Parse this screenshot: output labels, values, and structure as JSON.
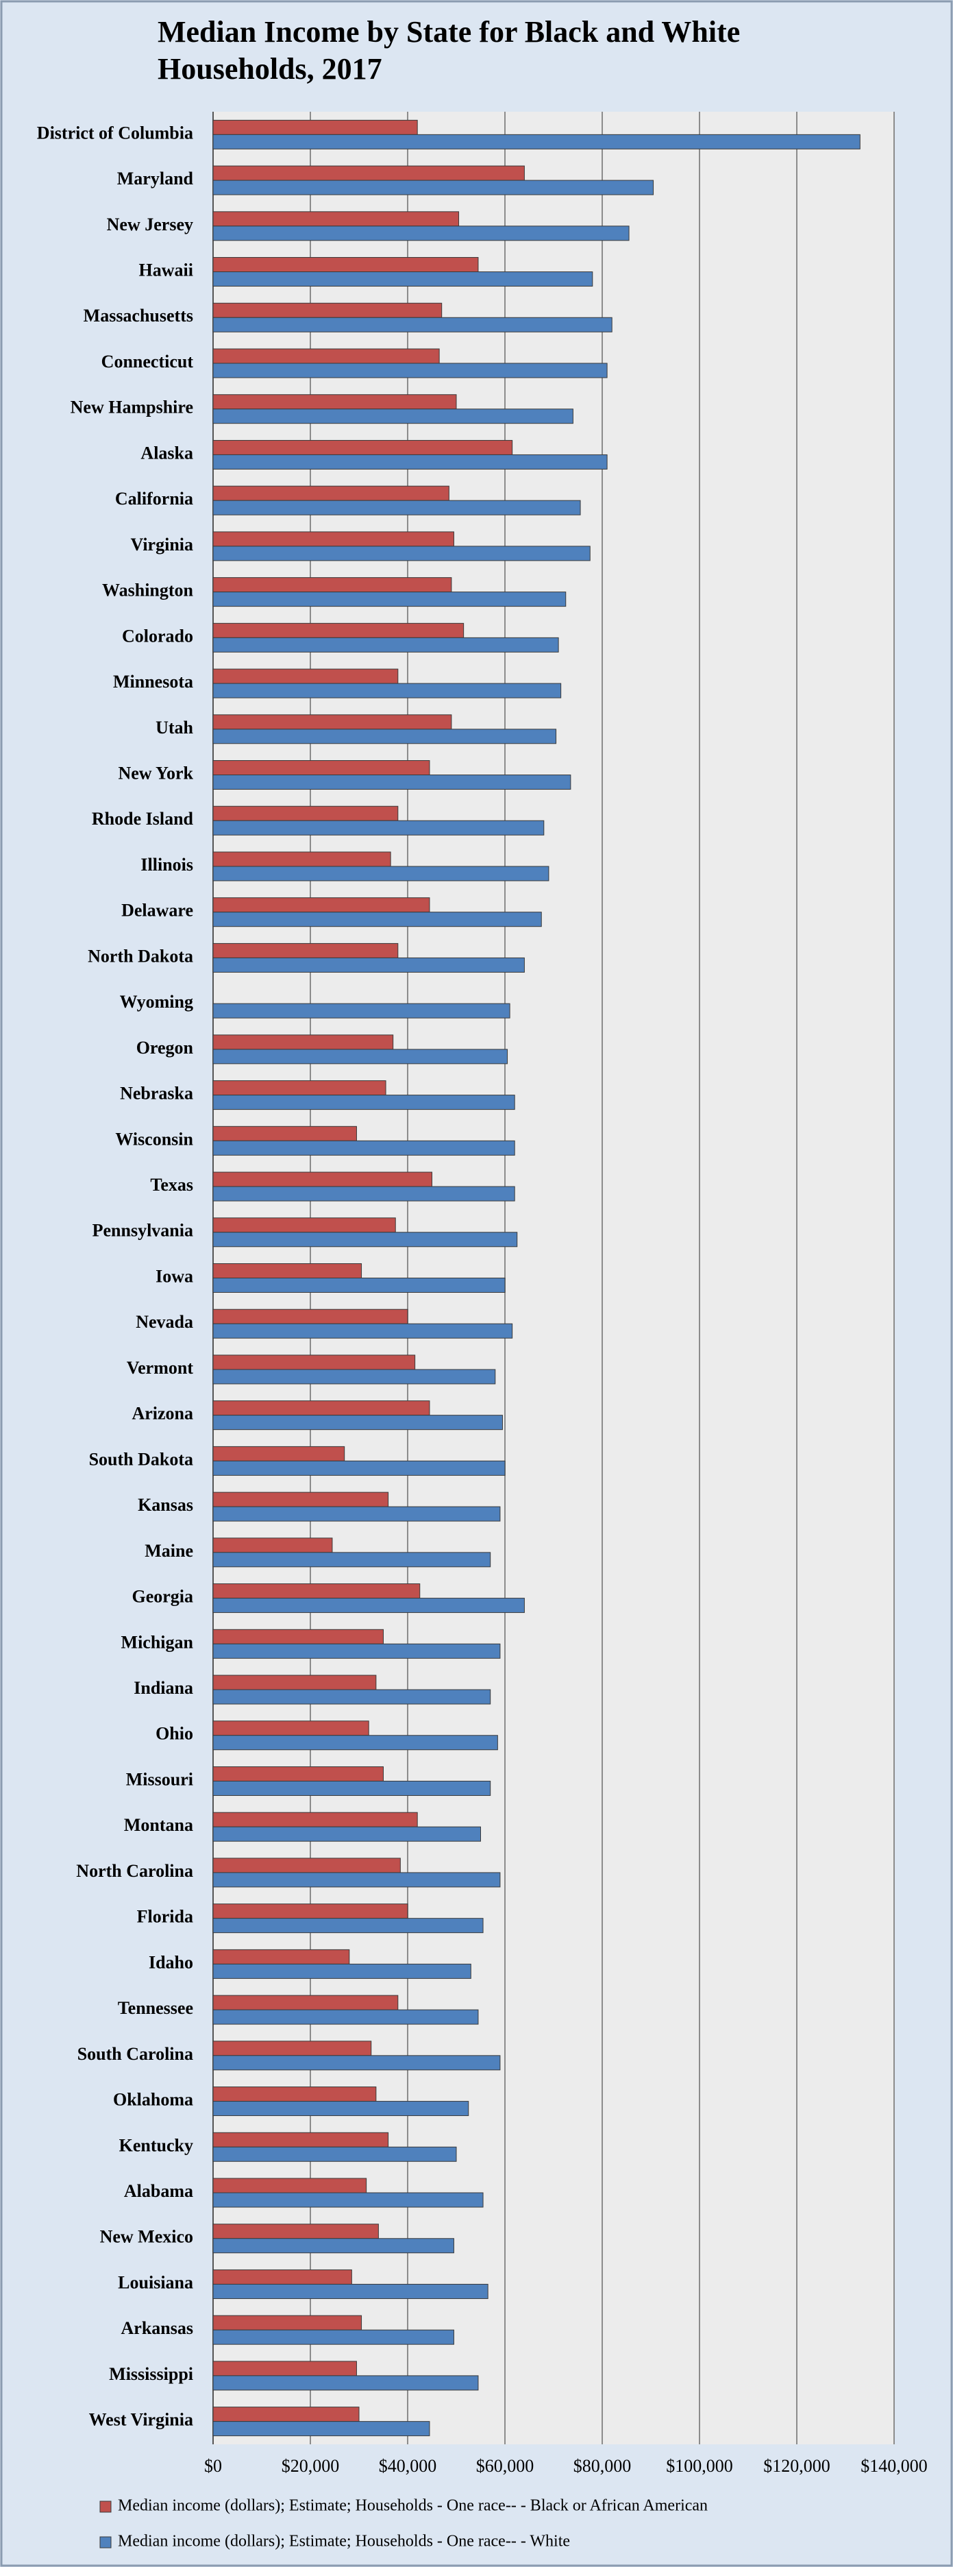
{
  "chart_data": {
    "type": "bar",
    "orientation": "horizontal",
    "title": "Median Income by State for Black and White Households, 2017",
    "categories": [
      "District of Columbia",
      "Maryland",
      "New Jersey",
      "Hawaii",
      "Massachusetts",
      "Connecticut",
      "New Hampshire",
      "Alaska",
      "California",
      "Virginia",
      "Washington",
      "Colorado",
      "Minnesota",
      "Utah",
      "New York",
      "Rhode Island",
      "Illinois",
      "Delaware",
      "North Dakota",
      "Wyoming",
      "Oregon",
      "Nebraska",
      "Wisconsin",
      "Texas",
      "Pennsylvania",
      "Iowa",
      "Nevada",
      "Vermont",
      "Arizona",
      "South Dakota",
      "Kansas",
      "Maine",
      "Georgia",
      "Michigan",
      "Indiana",
      "Ohio",
      "Missouri",
      "Montana",
      "North Carolina",
      "Florida",
      "Idaho",
      "Tennessee",
      "South Carolina",
      "Oklahoma",
      "Kentucky",
      "Alabama",
      "New Mexico",
      "Louisiana",
      "Arkansas",
      "Mississippi",
      "West Virginia"
    ],
    "series": [
      {
        "name": "Median income (dollars); Estimate; Households - One race-- - Black or African American",
        "color": "#c0504d",
        "values": [
          42000,
          64000,
          50500,
          54500,
          47000,
          46500,
          50000,
          61500,
          48500,
          49500,
          49000,
          51500,
          38000,
          49000,
          44500,
          38000,
          36500,
          44500,
          38000,
          null,
          37000,
          35500,
          29500,
          45000,
          37500,
          30500,
          40000,
          41500,
          44500,
          27000,
          36000,
          24500,
          42500,
          35000,
          33500,
          32000,
          35000,
          42000,
          38500,
          40000,
          28000,
          38000,
          32500,
          33500,
          36000,
          31500,
          34000,
          28500,
          30500,
          29500,
          30000
        ]
      },
      {
        "name": "Median income (dollars); Estimate; Households - One race-- - White",
        "color": "#4f81bd",
        "values": [
          133000,
          90500,
          85500,
          78000,
          82000,
          81000,
          74000,
          81000,
          75500,
          77500,
          72500,
          71000,
          71500,
          70500,
          73500,
          68000,
          69000,
          67500,
          64000,
          61000,
          60500,
          62000,
          62000,
          62000,
          62500,
          60000,
          61500,
          58000,
          59500,
          60000,
          59000,
          57000,
          64000,
          59000,
          57000,
          58500,
          57000,
          55000,
          59000,
          55500,
          53000,
          54500,
          59000,
          52500,
          50000,
          55500,
          49500,
          56500,
          49500,
          54500,
          44500
        ]
      }
    ],
    "xlim": [
      0,
      140000
    ],
    "xticks": [
      {
        "value": 0,
        "label": "$0"
      },
      {
        "value": 20000,
        "label": "$20,000"
      },
      {
        "value": 40000,
        "label": "$40,000"
      },
      {
        "value": 60000,
        "label": "$60,000"
      },
      {
        "value": 80000,
        "label": "$80,000"
      },
      {
        "value": 100000,
        "label": "$100,000"
      },
      {
        "value": 120000,
        "label": "$120,000"
      },
      {
        "value": 140000,
        "label": "$140,000"
      }
    ],
    "grid": true,
    "legend": "bottom"
  }
}
